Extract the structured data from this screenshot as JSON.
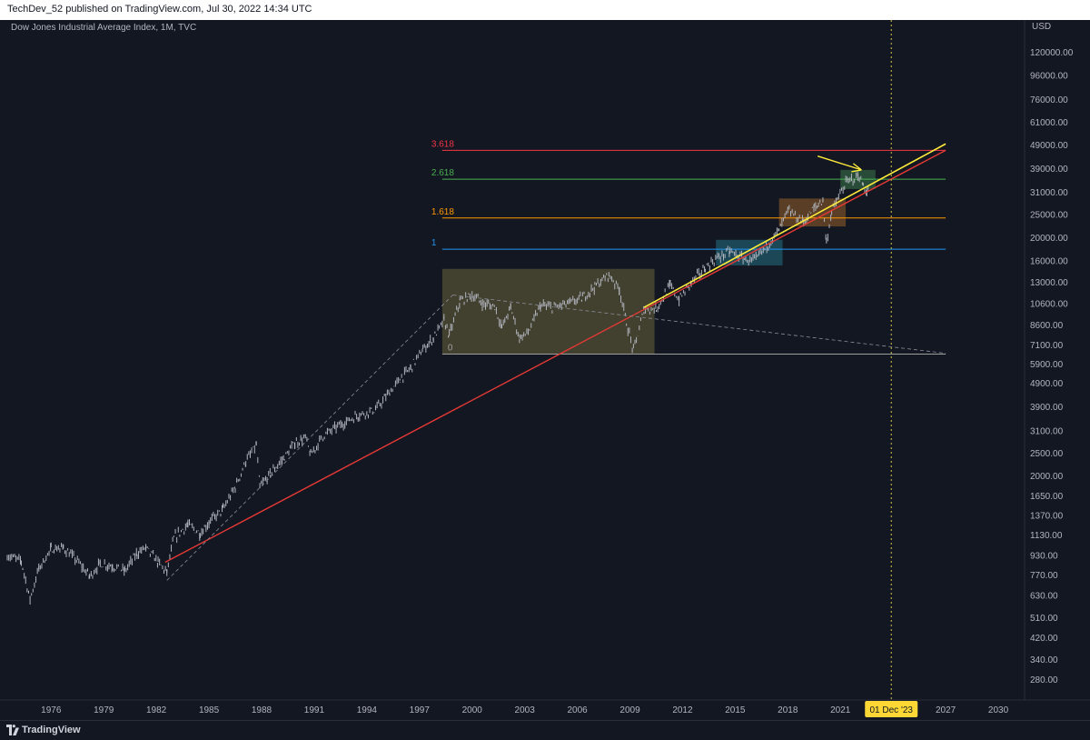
{
  "header": {
    "text": "TechDev_52 published on TradingView.com, Jul 30, 2022 14:34 UTC"
  },
  "instrument_label": "Dow Jones Industrial Average Index, 1M, TVC",
  "footer": {
    "brand": "TradingView"
  },
  "colors": {
    "background": "#131722",
    "candles": "#b2b5be",
    "trend_red": "#e53935",
    "trend_yellow": "#ffeb3b",
    "fib_3618": "#f23645",
    "fib_2618": "#4caf50",
    "fib_1618": "#ff9800",
    "fib_1": "#2196f3",
    "fib_0": "#9e9e9e",
    "date_badge": "#fdd835"
  },
  "chart_data": {
    "type": "line",
    "title": "Dow Jones Industrial Average Index, 1M, TVC",
    "yscale": "log",
    "ylabel": "USD",
    "ylim": [
      230,
      150000
    ],
    "xlim": [
      1973.5,
      2031.5
    ],
    "x_ticks": [
      "1976",
      "1979",
      "1982",
      "1985",
      "1988",
      "1991",
      "1994",
      "1997",
      "2000",
      "2003",
      "2006",
      "2009",
      "2012",
      "2015",
      "2018",
      "2021",
      "2027",
      "2030"
    ],
    "x_tick_values": [
      1976,
      1979,
      1982,
      1985,
      1988,
      1991,
      1994,
      1997,
      2000,
      2003,
      2006,
      2009,
      2012,
      2015,
      2018,
      2021,
      2027,
      2030
    ],
    "y_ticks": [
      "120000.00",
      "96000.00",
      "76000.00",
      "61000.00",
      "49000.00",
      "39000.00",
      "31000.00",
      "25000.00",
      "20000.00",
      "16000.00",
      "13000.00",
      "10600.00",
      "8600.00",
      "7100.00",
      "5900.00",
      "4900.00",
      "3900.00",
      "3100.00",
      "2500.00",
      "2000.00",
      "1650.00",
      "1370.00",
      "1130.00",
      "930.00",
      "770.00",
      "630.00",
      "510.00",
      "420.00",
      "340.00",
      "280.00"
    ],
    "y_tick_values": [
      120000,
      96000,
      76000,
      61000,
      49000,
      39000,
      31000,
      25000,
      20000,
      16000,
      13000,
      10600,
      8600,
      7100,
      5900,
      4900,
      3900,
      3100,
      2500,
      2000,
      1650,
      1370,
      1130,
      930,
      770,
      630,
      510,
      420,
      340,
      280
    ],
    "series": [
      {
        "values_xy": [
          [
            1973.5,
            930
          ],
          [
            1974.3,
            880
          ],
          [
            1974.8,
            610
          ],
          [
            1975.3,
            820
          ],
          [
            1976.0,
            990
          ],
          [
            1976.7,
            1000
          ],
          [
            1977.5,
            880
          ],
          [
            1978.2,
            760
          ],
          [
            1978.8,
            860
          ],
          [
            1979.5,
            840
          ],
          [
            1980.2,
            800
          ],
          [
            1980.9,
            950
          ],
          [
            1981.4,
            1000
          ],
          [
            1982.1,
            870
          ],
          [
            1982.6,
            790
          ],
          [
            1983.0,
            1100
          ],
          [
            1983.8,
            1250
          ],
          [
            1984.5,
            1150
          ],
          [
            1985.0,
            1280
          ],
          [
            1985.8,
            1450
          ],
          [
            1986.5,
            1800
          ],
          [
            1987.1,
            2300
          ],
          [
            1987.7,
            2700
          ],
          [
            1987.9,
            1800
          ],
          [
            1988.5,
            2050
          ],
          [
            1989.3,
            2400
          ],
          [
            1989.9,
            2750
          ],
          [
            1990.5,
            2900
          ],
          [
            1990.8,
            2450
          ],
          [
            1991.5,
            2950
          ],
          [
            1992.5,
            3300
          ],
          [
            1993.5,
            3600
          ],
          [
            1994.5,
            3800
          ],
          [
            1995.3,
            4500
          ],
          [
            1995.9,
            5100
          ],
          [
            1996.5,
            5700
          ],
          [
            1997.2,
            6800
          ],
          [
            1997.8,
            7600
          ],
          [
            1998.4,
            9000
          ],
          [
            1998.7,
            7800
          ],
          [
            1999.3,
            10800
          ],
          [
            2000.0,
            11500
          ],
          [
            2000.6,
            10600
          ],
          [
            2001.3,
            10300
          ],
          [
            2001.7,
            8400
          ],
          [
            2002.2,
            10200
          ],
          [
            2002.7,
            7600
          ],
          [
            2003.2,
            8000
          ],
          [
            2003.9,
            10400
          ],
          [
            2004.6,
            10200
          ],
          [
            2005.5,
            10600
          ],
          [
            2006.3,
            11200
          ],
          [
            2007.0,
            12500
          ],
          [
            2007.8,
            14000
          ],
          [
            2008.4,
            12200
          ],
          [
            2008.8,
            8800
          ],
          [
            2009.2,
            6700
          ],
          [
            2009.8,
            10000
          ],
          [
            2010.5,
            10100
          ],
          [
            2011.3,
            12600
          ],
          [
            2011.8,
            11000
          ],
          [
            2012.5,
            13000
          ],
          [
            2013.3,
            15000
          ],
          [
            2014.0,
            16500
          ],
          [
            2014.7,
            17500
          ],
          [
            2015.6,
            16200
          ],
          [
            2016.1,
            16000
          ],
          [
            2016.8,
            18500
          ],
          [
            2017.5,
            21500
          ],
          [
            2018.0,
            26000
          ],
          [
            2018.9,
            23300
          ],
          [
            2019.5,
            26600
          ],
          [
            2020.0,
            28700
          ],
          [
            2020.2,
            19000
          ],
          [
            2020.5,
            25800
          ],
          [
            2020.9,
            29600
          ],
          [
            2021.3,
            33800
          ],
          [
            2021.9,
            36300
          ],
          [
            2022.0,
            36800
          ],
          [
            2022.3,
            33000
          ],
          [
            2022.5,
            31000
          ],
          [
            2022.6,
            31500
          ]
        ]
      }
    ],
    "fib_levels": [
      {
        "label": "3.618",
        "value": 46500
      },
      {
        "label": "2.618",
        "value": 35200
      },
      {
        "label": "1.618",
        "value": 24200
      },
      {
        "label": "1",
        "value": 17900
      },
      {
        "label": "0",
        "value": 6500
      }
    ],
    "marker": {
      "label": "01 Dec '23",
      "x": 2023.9
    },
    "annotation_lines": [
      {
        "kind": "red-trendline",
        "from": [
          1982.5,
          870
        ],
        "to": [
          2027.0,
          46500
        ]
      },
      {
        "kind": "yellow-trendline",
        "from": [
          2009.8,
          10200
        ],
        "to": [
          2027.0,
          49500
        ]
      },
      {
        "kind": "dashed-line",
        "from": [
          1982.6,
          730
        ],
        "to": [
          1998.9,
          11500
        ]
      },
      {
        "kind": "dashed-line",
        "from": [
          1998.9,
          11500
        ],
        "to": [
          2027.0,
          6550
        ]
      }
    ],
    "annotation_boxes": [
      {
        "kind": "olive-box",
        "x": [
          1998.3,
          2010.4
        ],
        "y": [
          6500,
          14800
        ]
      },
      {
        "kind": "teal-box",
        "x": [
          2013.9,
          2017.7
        ],
        "y": [
          15300,
          19600
        ]
      },
      {
        "kind": "orange-box",
        "x": [
          2017.5,
          2021.3
        ],
        "y": [
          22300,
          29200
        ]
      },
      {
        "kind": "green-box",
        "x": [
          2021.0,
          2023.0
        ],
        "y": [
          32000,
          38500
        ]
      }
    ]
  }
}
